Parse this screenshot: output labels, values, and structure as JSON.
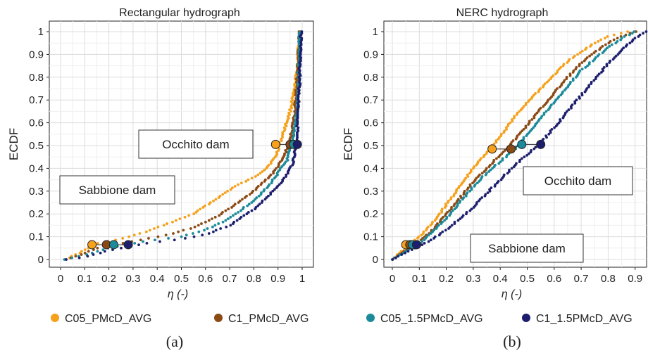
{
  "chart_data": [
    {
      "type": "scatter",
      "title": "Rectangular hydrograph",
      "xlabel": "η (-)",
      "ylabel": "ECDF",
      "xlim": [
        0,
        1
      ],
      "ylim": [
        0,
        1
      ],
      "x_ticks": [
        "0",
        "0.1",
        "0.2",
        "0.3",
        "0.4",
        "0.5",
        "0.6",
        "0.7",
        "0.8",
        "0.9",
        "1"
      ],
      "y_ticks": [
        "0",
        "0.1",
        "0.2",
        "0.3",
        "0.4",
        "0.5",
        "0.6",
        "0.7",
        "0.8",
        "0.9",
        "1"
      ],
      "grid": true,
      "annotations": [
        {
          "text": "Occhito dam",
          "x": 0.52,
          "y": 0.505
        },
        {
          "text": "Sabbione dam",
          "x": 0.19,
          "y": 0.305
        }
      ],
      "series": [
        {
          "name": "C05_PMcD_AVG",
          "color": "#f5a11c",
          "curve": [
            [
              0.02,
              0
            ],
            [
              0.08,
              0.03
            ],
            [
              0.15,
              0.07
            ],
            [
              0.25,
              0.09
            ],
            [
              0.35,
              0.12
            ],
            [
              0.45,
              0.16
            ],
            [
              0.55,
              0.2
            ],
            [
              0.65,
              0.27
            ],
            [
              0.72,
              0.32
            ],
            [
              0.8,
              0.36
            ],
            [
              0.85,
              0.4
            ],
            [
              0.89,
              0.45
            ],
            [
              0.92,
              0.55
            ],
            [
              0.95,
              0.65
            ],
            [
              0.97,
              0.75
            ],
            [
              0.98,
              0.85
            ],
            [
              0.99,
              1
            ]
          ],
          "markers": [
            [
              0.13,
              0.065
            ],
            [
              0.89,
              0.505
            ]
          ]
        },
        {
          "name": "C1_PMcD_AVG",
          "color": "#8b4a14",
          "curve": [
            [
              0.02,
              0
            ],
            [
              0.08,
              0.02
            ],
            [
              0.15,
              0.05
            ],
            [
              0.3,
              0.08
            ],
            [
              0.45,
              0.11
            ],
            [
              0.55,
              0.14
            ],
            [
              0.65,
              0.19
            ],
            [
              0.75,
              0.26
            ],
            [
              0.82,
              0.32
            ],
            [
              0.88,
              0.38
            ],
            [
              0.92,
              0.44
            ],
            [
              0.95,
              0.52
            ],
            [
              0.97,
              0.65
            ],
            [
              0.98,
              0.8
            ],
            [
              0.99,
              1
            ]
          ],
          "markers": [
            [
              0.19,
              0.065
            ],
            [
              0.95,
              0.505
            ]
          ]
        },
        {
          "name": "C05_1.5PMcD_AVG",
          "color": "#1b8a9a",
          "curve": [
            [
              0.02,
              0
            ],
            [
              0.1,
              0.02
            ],
            [
              0.2,
              0.05
            ],
            [
              0.35,
              0.08
            ],
            [
              0.5,
              0.1
            ],
            [
              0.6,
              0.13
            ],
            [
              0.7,
              0.18
            ],
            [
              0.8,
              0.26
            ],
            [
              0.86,
              0.32
            ],
            [
              0.9,
              0.38
            ],
            [
              0.94,
              0.44
            ],
            [
              0.96,
              0.52
            ],
            [
              0.98,
              0.65
            ],
            [
              0.985,
              0.8
            ],
            [
              0.99,
              1
            ]
          ],
          "markers": [
            [
              0.22,
              0.065
            ],
            [
              0.965,
              0.505
            ]
          ]
        },
        {
          "name": "C1_1.5PMcD_AVG",
          "color": "#1d1f6e",
          "curve": [
            [
              0.02,
              0
            ],
            [
              0.1,
              0.01
            ],
            [
              0.2,
              0.04
            ],
            [
              0.35,
              0.07
            ],
            [
              0.5,
              0.09
            ],
            [
              0.6,
              0.11
            ],
            [
              0.7,
              0.15
            ],
            [
              0.8,
              0.22
            ],
            [
              0.88,
              0.3
            ],
            [
              0.93,
              0.36
            ],
            [
              0.96,
              0.42
            ],
            [
              0.975,
              0.5
            ],
            [
              0.985,
              0.65
            ],
            [
              0.99,
              0.8
            ],
            [
              0.995,
              1
            ]
          ],
          "markers": [
            [
              0.28,
              0.065
            ],
            [
              0.98,
              0.505
            ]
          ]
        }
      ]
    },
    {
      "type": "scatter",
      "title": "NERC hydrograph",
      "xlabel": "η (-)",
      "ylabel": "ECDF",
      "xlim": [
        0,
        1
      ],
      "ylim": [
        0,
        1
      ],
      "x_ticks": [
        "0",
        "0.1",
        "0.2",
        "0.3",
        "0.4",
        "0.5",
        "0.6",
        "0.7",
        "0.8",
        "0.9"
      ],
      "y_ticks": [
        "0",
        "0.1",
        "0.2",
        "0.3",
        "0.4",
        "0.5",
        "0.6",
        "0.7",
        "0.8",
        "0.9",
        "1"
      ],
      "grid": true,
      "annotations": [
        {
          "text": "Occhito dam",
          "x": 0.7,
          "y": 0.49
        },
        {
          "text": "Sabbione dam",
          "x": 0.53,
          "y": 0.065
        }
      ],
      "series": [
        {
          "name": "C05_PMcD_AVG",
          "color": "#f5a11c",
          "curve": [
            [
              0.0,
              0
            ],
            [
              0.05,
              0.05
            ],
            [
              0.1,
              0.1
            ],
            [
              0.15,
              0.16
            ],
            [
              0.2,
              0.24
            ],
            [
              0.25,
              0.32
            ],
            [
              0.3,
              0.4
            ],
            [
              0.35,
              0.47
            ],
            [
              0.4,
              0.54
            ],
            [
              0.45,
              0.62
            ],
            [
              0.5,
              0.69
            ],
            [
              0.55,
              0.75
            ],
            [
              0.6,
              0.81
            ],
            [
              0.65,
              0.87
            ],
            [
              0.7,
              0.91
            ],
            [
              0.75,
              0.95
            ],
            [
              0.8,
              0.98
            ],
            [
              0.87,
              1
            ]
          ],
          "markers": [
            [
              0.05,
              0.065
            ],
            [
              0.37,
              0.485
            ]
          ]
        },
        {
          "name": "C1_PMcD_AVG",
          "color": "#8b4a14",
          "curve": [
            [
              0.0,
              0
            ],
            [
              0.05,
              0.04
            ],
            [
              0.1,
              0.08
            ],
            [
              0.15,
              0.13
            ],
            [
              0.2,
              0.2
            ],
            [
              0.25,
              0.27
            ],
            [
              0.3,
              0.34
            ],
            [
              0.35,
              0.4
            ],
            [
              0.4,
              0.46
            ],
            [
              0.45,
              0.52
            ],
            [
              0.5,
              0.59
            ],
            [
              0.55,
              0.66
            ],
            [
              0.6,
              0.73
            ],
            [
              0.65,
              0.8
            ],
            [
              0.7,
              0.86
            ],
            [
              0.75,
              0.91
            ],
            [
              0.8,
              0.95
            ],
            [
              0.85,
              0.98
            ],
            [
              0.9,
              1
            ]
          ],
          "markers": [
            [
              0.065,
              0.065
            ],
            [
              0.44,
              0.485
            ]
          ]
        },
        {
          "name": "C05_1.5PMcD_AVG",
          "color": "#1b8a9a",
          "curve": [
            [
              0.0,
              0
            ],
            [
              0.05,
              0.035
            ],
            [
              0.1,
              0.07
            ],
            [
              0.15,
              0.12
            ],
            [
              0.2,
              0.18
            ],
            [
              0.25,
              0.25
            ],
            [
              0.3,
              0.32
            ],
            [
              0.35,
              0.38
            ],
            [
              0.4,
              0.43
            ],
            [
              0.45,
              0.48
            ],
            [
              0.5,
              0.55
            ],
            [
              0.55,
              0.62
            ],
            [
              0.6,
              0.69
            ],
            [
              0.65,
              0.76
            ],
            [
              0.7,
              0.83
            ],
            [
              0.75,
              0.88
            ],
            [
              0.8,
              0.93
            ],
            [
              0.85,
              0.97
            ],
            [
              0.9,
              1
            ]
          ],
          "markers": [
            [
              0.075,
              0.065
            ],
            [
              0.48,
              0.505
            ]
          ]
        },
        {
          "name": "C1_1.5PMcD_AVG",
          "color": "#1d1f6e",
          "curve": [
            [
              0.0,
              0
            ],
            [
              0.05,
              0.03
            ],
            [
              0.1,
              0.06
            ],
            [
              0.15,
              0.09
            ],
            [
              0.2,
              0.13
            ],
            [
              0.25,
              0.18
            ],
            [
              0.3,
              0.23
            ],
            [
              0.35,
              0.29
            ],
            [
              0.4,
              0.35
            ],
            [
              0.45,
              0.41
            ],
            [
              0.5,
              0.46
            ],
            [
              0.55,
              0.51
            ],
            [
              0.6,
              0.58
            ],
            [
              0.65,
              0.65
            ],
            [
              0.7,
              0.72
            ],
            [
              0.75,
              0.79
            ],
            [
              0.8,
              0.86
            ],
            [
              0.85,
              0.92
            ],
            [
              0.9,
              0.97
            ],
            [
              0.94,
              1
            ]
          ],
          "markers": [
            [
              0.09,
              0.065
            ],
            [
              0.55,
              0.505
            ]
          ]
        }
      ]
    }
  ],
  "legend": [
    {
      "label": "C05_PMcD_AVG",
      "color": "#f5a11c"
    },
    {
      "label": "C1_PMcD_AVG",
      "color": "#8b4a14"
    },
    {
      "label": "C05_1.5PMcD_AVG",
      "color": "#1b8a9a"
    },
    {
      "label": "C1_1.5PMcD_AVG",
      "color": "#1d1f6e"
    }
  ],
  "captions": [
    "(a)",
    "(b)"
  ]
}
